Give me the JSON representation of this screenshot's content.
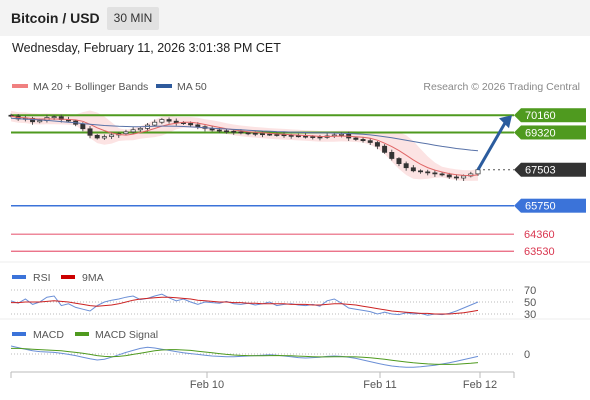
{
  "header": {
    "title": "Bitcoin / USD",
    "timeframe": "30 MIN",
    "datetime": "Wednesday, February 11, 2026 3:01:38 PM CET"
  },
  "chart_data": [
    {
      "type": "line",
      "title": "",
      "legend": [
        {
          "name": "MA 20 + Bollinger Bands",
          "color": "#f08080"
        },
        {
          "name": "MA 50",
          "color": "#2e5a9c"
        }
      ],
      "watermark": "Research © 2026 Trading Central",
      "x_ticks": [
        "Feb 10",
        "Feb 11",
        "Feb 12"
      ],
      "ylim": [
        63200,
        71000
      ],
      "levels": [
        {
          "value": 70160,
          "label": "70160",
          "kind": "resistance",
          "color": "#4f9a1f"
        },
        {
          "value": 69320,
          "label": "69320",
          "kind": "resistance",
          "color": "#4f9a1f"
        },
        {
          "value": 67503,
          "label": "67503",
          "kind": "last-price",
          "color": "#333333"
        },
        {
          "value": 65750,
          "label": "65750",
          "kind": "pivot",
          "color": "#3b73d9"
        },
        {
          "value": 64360,
          "label": "64360",
          "kind": "support",
          "color": "#e8607a"
        },
        {
          "value": 63530,
          "label": "63530",
          "kind": "support",
          "color": "#e8607a"
        }
      ],
      "close_series": [
        70120,
        69980,
        70010,
        69840,
        69900,
        70050,
        70090,
        69950,
        69880,
        69720,
        69500,
        69180,
        69050,
        69120,
        69200,
        69260,
        69350,
        69450,
        69520,
        69680,
        69820,
        69950,
        69870,
        69800,
        69760,
        69690,
        69600,
        69520,
        69440,
        69400,
        69380,
        69350,
        69300,
        69280,
        69260,
        69240,
        69220,
        69210,
        69180,
        69160,
        69140,
        69120,
        69100,
        69080,
        69150,
        69200,
        69230,
        69050,
        68980,
        68920,
        68830,
        68650,
        68350,
        68050,
        67800,
        67600,
        67450,
        67400,
        67350,
        67300,
        67250,
        67150,
        67100,
        67200,
        67300,
        67503
      ],
      "ma50_series": [
        70010,
        69990,
        69970,
        69950,
        69930,
        69910,
        69880,
        69850,
        69820,
        69790,
        69750,
        69720,
        69690,
        69660,
        69640,
        69620,
        69610,
        69600,
        69600,
        69610,
        69620,
        69630,
        69630,
        69620,
        69610,
        69590,
        69570,
        69550,
        69530,
        69510,
        69490,
        69470,
        69450,
        69430,
        69410,
        69390,
        69380,
        69360,
        69350,
        69340,
        69330,
        69320,
        69310,
        69300,
        69300,
        69290,
        69280,
        69270,
        69250,
        69230,
        69200,
        69160,
        69110,
        69060,
        69000,
        68940,
        68880,
        68820,
        68760,
        68700,
        68640,
        68590,
        68540,
        68500,
        68460,
        68430
      ],
      "projection": {
        "from": 67503,
        "to": 70160
      }
    },
    {
      "type": "line",
      "title": "",
      "legend": [
        {
          "name": "RSI",
          "color": "#3b73d9"
        },
        {
          "name": "9MA",
          "color": "#cc0000"
        }
      ],
      "ylim": [
        25,
        75
      ],
      "levels": [
        {
          "value": 70,
          "label": "70"
        },
        {
          "value": 50,
          "label": "50"
        },
        {
          "value": 30,
          "label": "30"
        }
      ],
      "rsi_series": [
        52,
        48,
        55,
        46,
        50,
        58,
        60,
        44,
        47,
        41,
        38,
        35,
        44,
        50,
        53,
        55,
        58,
        60,
        54,
        56,
        60,
        63,
        57,
        52,
        55,
        50,
        46,
        50,
        49,
        48,
        51,
        47,
        46,
        48,
        45,
        47,
        50,
        44,
        46,
        47,
        45,
        44,
        46,
        43,
        52,
        55,
        48,
        40,
        38,
        36,
        34,
        30,
        33,
        30,
        29,
        32,
        30,
        31,
        28,
        30,
        29,
        31,
        35,
        40,
        45,
        50
      ],
      "ma9_series": [
        49,
        49,
        50,
        50,
        50,
        51,
        52,
        51,
        50,
        48,
        46,
        44,
        43,
        44,
        45,
        47,
        50,
        53,
        55,
        56,
        57,
        58,
        58,
        57,
        56,
        55,
        53,
        52,
        51,
        50,
        50,
        49,
        49,
        48,
        48,
        47,
        47,
        47,
        47,
        46,
        46,
        46,
        45,
        45,
        46,
        47,
        47,
        46,
        45,
        43,
        41,
        39,
        37,
        35,
        34,
        33,
        32,
        31,
        31,
        30,
        30,
        30,
        31,
        32,
        34,
        36
      ]
    },
    {
      "type": "line",
      "title": "",
      "legend": [
        {
          "name": "MACD",
          "color": "#3b73d9"
        },
        {
          "name": "MACD Signal",
          "color": "#4f9a1f"
        }
      ],
      "ylim": [
        -400,
        350
      ],
      "levels": [
        {
          "value": 0,
          "label": "0"
        }
      ],
      "macd_series": [
        200,
        160,
        120,
        80,
        60,
        50,
        40,
        20,
        -10,
        -40,
        -80,
        -120,
        -150,
        -130,
        -80,
        -20,
        40,
        90,
        140,
        170,
        150,
        120,
        90,
        60,
        30,
        10,
        -10,
        -30,
        -50,
        -60,
        -70,
        -70,
        -60,
        -50,
        -40,
        -30,
        -20,
        -30,
        -50,
        -70,
        -90,
        -100,
        -90,
        -80,
        -60,
        -50,
        -60,
        -80,
        -110,
        -150,
        -190,
        -230,
        -270,
        -300,
        -320,
        -330,
        -330,
        -320,
        -300,
        -280,
        -250,
        -220,
        -180,
        -140,
        -100,
        -60
      ],
      "signal_series": [
        140,
        140,
        130,
        120,
        110,
        100,
        90,
        80,
        60,
        40,
        20,
        -10,
        -40,
        -60,
        -70,
        -60,
        -40,
        -10,
        20,
        50,
        80,
        100,
        110,
        110,
        100,
        90,
        70,
        50,
        30,
        10,
        -10,
        -25,
        -35,
        -40,
        -42,
        -42,
        -40,
        -38,
        -40,
        -45,
        -52,
        -60,
        -68,
        -72,
        -72,
        -70,
        -68,
        -68,
        -72,
        -82,
        -95,
        -112,
        -132,
        -155,
        -178,
        -200,
        -220,
        -236,
        -248,
        -256,
        -260,
        -260,
        -256,
        -246,
        -232,
        -215
      ]
    }
  ]
}
